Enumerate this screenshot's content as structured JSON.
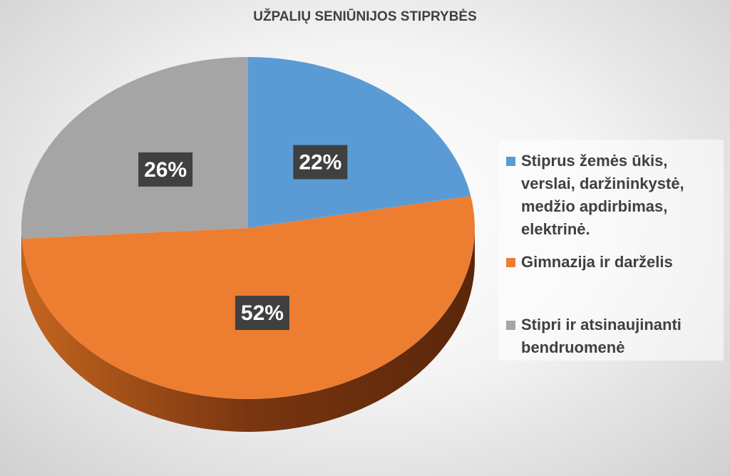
{
  "chart_data": {
    "type": "pie",
    "title": "UŽPALIŲ SENIŪNIJOS STIPRYBĖS",
    "categories": [
      "Stiprus žemės ūkis, verslai, daržininkystė, medžio apdirbimas, elektrinė.",
      "Gimnazija ir darželis",
      "Stipri ir atsinaujinanti bendruomenė"
    ],
    "values": [
      22,
      52,
      26
    ],
    "value_labels": [
      "22%",
      "52%",
      "26%"
    ],
    "colors": [
      "#5b9bd5",
      "#ed7d31",
      "#a5a5a5"
    ]
  }
}
